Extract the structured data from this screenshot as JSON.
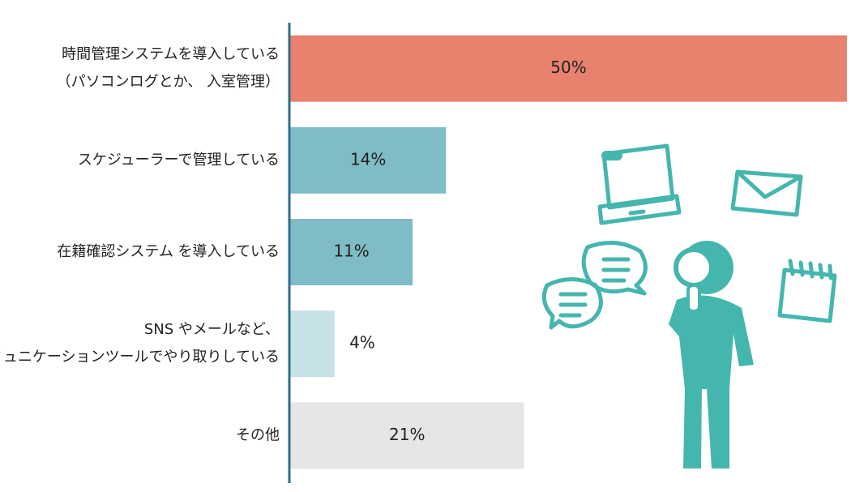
{
  "chart_data": {
    "type": "bar",
    "orientation": "horizontal",
    "categories": [
      [
        "時間管理システムを導入している",
        "（パソコンログとか、 入室管理）"
      ],
      [
        "スケジューラーで管理している"
      ],
      [
        "在籍確認システム を導入している"
      ],
      [
        "SNS やメールなど、",
        "コミュニケーションツールでやり取りしている"
      ],
      [
        "その他"
      ]
    ],
    "values": [
      50,
      14,
      11,
      4,
      21
    ],
    "value_labels": [
      "50%",
      "14%",
      "11%",
      "4%",
      "21%"
    ],
    "colors": [
      "#e8826f",
      "#80bcc6",
      "#80bcc6",
      "#c7e2e6",
      "#e6e6e6"
    ],
    "xlim": [
      0,
      50
    ]
  }
}
